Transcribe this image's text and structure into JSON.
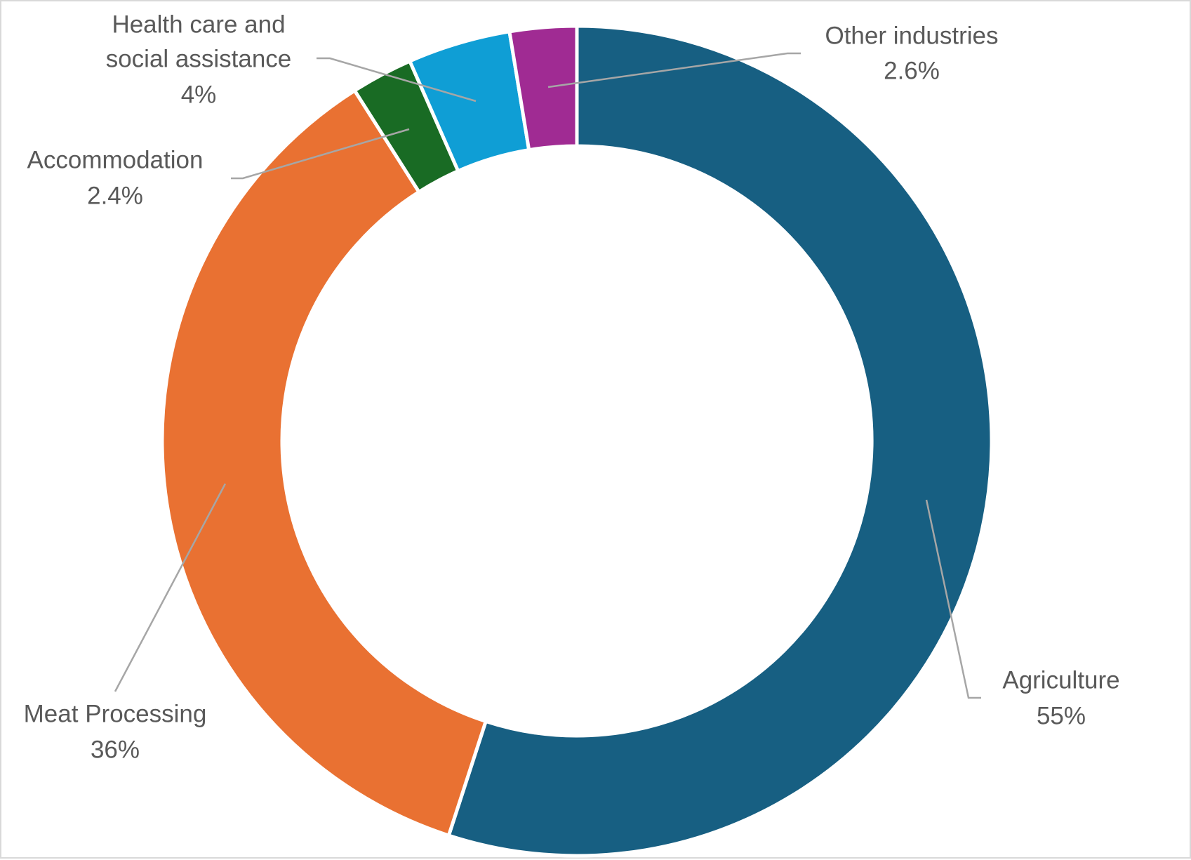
{
  "chart_data": {
    "type": "pie",
    "variant": "donut",
    "legend": "none",
    "data_labels": "outside with leader lines",
    "slices": [
      {
        "label": "Agriculture",
        "value": 55,
        "display": "55%",
        "color": "#175F82"
      },
      {
        "label": "Meat Processing",
        "value": 36,
        "display": "36%",
        "color": "#E97132"
      },
      {
        "label": "Accommodation",
        "value": 2.4,
        "display": "2.4%",
        "color": "#196B24"
      },
      {
        "label": "Health care and social assistance",
        "label_lines": [
          "Health care and",
          "social assistance"
        ],
        "value": 4,
        "display": "4%",
        "color": "#0F9ED5"
      },
      {
        "label": "Other industries",
        "value": 2.6,
        "display": "2.6%",
        "color": "#A02B93"
      }
    ]
  }
}
